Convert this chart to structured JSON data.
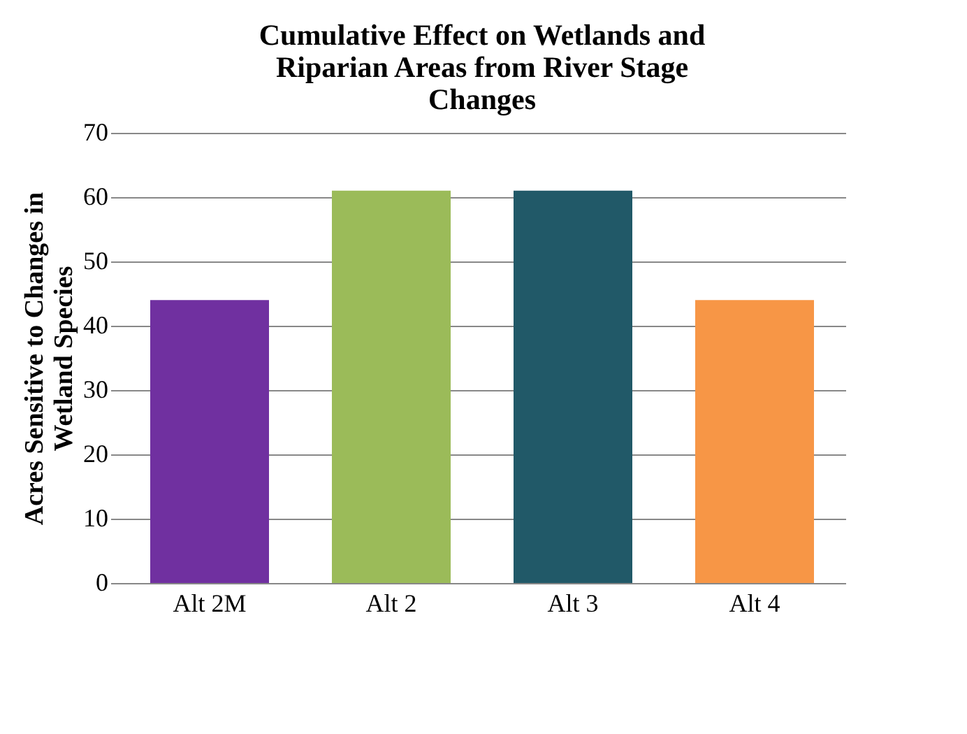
{
  "chart_data": {
    "type": "bar",
    "title": "Cumulative Effect on Wetlands and\nRiparian Areas from River Stage\nChanges",
    "ylabel": "Acres Sensitive to Changes in\nWetland Species",
    "categories": [
      "Alt 2M",
      "Alt 2",
      "Alt 3",
      "Alt 4"
    ],
    "values": [
      44,
      61,
      61,
      44
    ],
    "colors": [
      "#7030a0",
      "#9bbb59",
      "#215968",
      "#f79646"
    ],
    "ylim": [
      0,
      70
    ],
    "yticks": [
      0,
      10,
      20,
      30,
      40,
      50,
      60,
      70
    ],
    "grid": "y"
  }
}
